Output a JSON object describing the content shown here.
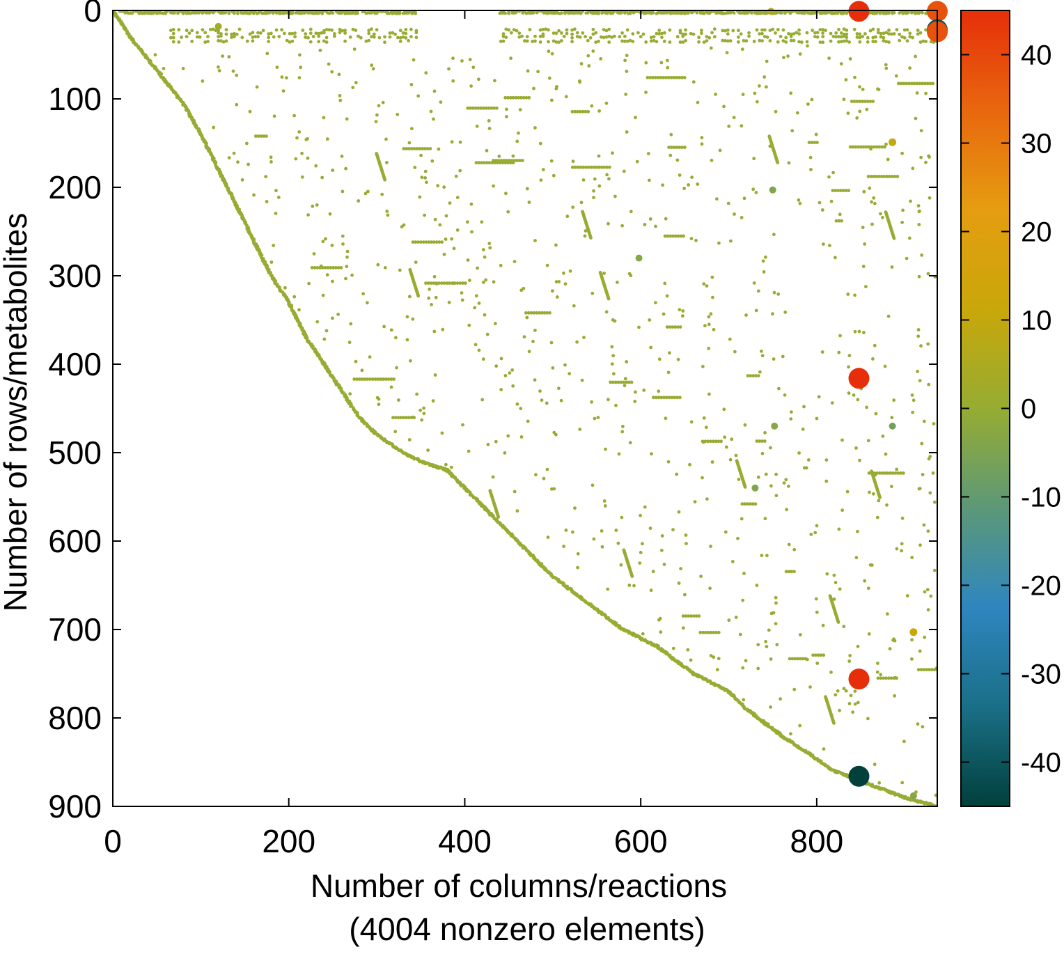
{
  "chart_data": {
    "type": "scatter",
    "subtype": "sparsity-pattern",
    "xlabel": "Number of columns/reactions",
    "xlabel_line2": "(4004 nonzero elements)",
    "ylabel": "Number of rows/metabolites",
    "xlim": [
      0,
      937
    ],
    "ylim": [
      900,
      0
    ],
    "y_inverted": true,
    "x_ticks": [
      "0",
      "200",
      "400",
      "600",
      "800"
    ],
    "x_tick_values": [
      0,
      200,
      400,
      600,
      800
    ],
    "y_ticks": [
      "0",
      "100",
      "200",
      "300",
      "400",
      "500",
      "600",
      "700",
      "800",
      "900"
    ],
    "y_tick_values": [
      0,
      100,
      200,
      300,
      400,
      500,
      600,
      700,
      800,
      900
    ],
    "grid": false,
    "colorbar": {
      "range": [
        -45,
        45
      ],
      "tick_labels": [
        "40",
        "30",
        "20",
        "10",
        "0",
        "-10",
        "-20",
        "-30",
        "-40"
      ],
      "tick_values": [
        40,
        30,
        20,
        10,
        0,
        -10,
        -20,
        -30,
        -40
      ],
      "colors": [
        "#02403c",
        "#1a6f87",
        "#2e86bf",
        "#5c9878",
        "#96ac32",
        "#c9a70a",
        "#e59d10",
        "#e8670e",
        "#e62f0a"
      ]
    },
    "highlighted_points": [
      {
        "x": 848,
        "y": 1,
        "value": 45
      },
      {
        "x": 937,
        "y": 1,
        "value": 38
      },
      {
        "x": 937,
        "y": 22,
        "value": -42
      },
      {
        "x": 937,
        "y": 24,
        "value": 38
      },
      {
        "x": 848,
        "y": 416,
        "value": 45
      },
      {
        "x": 848,
        "y": 756,
        "value": 45
      },
      {
        "x": 848,
        "y": 866,
        "value": -45
      },
      {
        "x": 748,
        "y": 1,
        "value": 6
      },
      {
        "x": 120,
        "y": 18,
        "value": 3
      },
      {
        "x": 886,
        "y": 149,
        "value": 10
      },
      {
        "x": 750,
        "y": 203,
        "value": -4
      },
      {
        "x": 598,
        "y": 280,
        "value": -3
      },
      {
        "x": 752,
        "y": 470,
        "value": -3
      },
      {
        "x": 886,
        "y": 470,
        "value": -7
      },
      {
        "x": 730,
        "y": 540,
        "value": -4
      },
      {
        "x": 910,
        "y": 703,
        "value": 11
      },
      {
        "x": 910,
        "y": 888,
        "value": -3
      }
    ],
    "diagonal_band": [
      [
        0,
        0
      ],
      [
        20,
        30
      ],
      [
        40,
        55
      ],
      [
        60,
        80
      ],
      [
        80,
        105
      ],
      [
        100,
        140
      ],
      [
        120,
        180
      ],
      [
        140,
        220
      ],
      [
        160,
        260
      ],
      [
        180,
        300
      ],
      [
        200,
        330
      ],
      [
        220,
        370
      ],
      [
        240,
        400
      ],
      [
        260,
        430
      ],
      [
        280,
        460
      ],
      [
        300,
        480
      ],
      [
        330,
        500
      ],
      [
        350,
        510
      ],
      [
        380,
        520
      ],
      [
        400,
        540
      ],
      [
        430,
        570
      ],
      [
        460,
        600
      ],
      [
        500,
        640
      ],
      [
        540,
        670
      ],
      [
        580,
        700
      ],
      [
        620,
        720
      ],
      [
        660,
        750
      ],
      [
        700,
        770
      ],
      [
        720,
        790
      ],
      [
        760,
        820
      ],
      [
        790,
        840
      ],
      [
        820,
        860
      ],
      [
        860,
        875
      ],
      [
        900,
        890
      ],
      [
        937,
        900
      ]
    ]
  }
}
